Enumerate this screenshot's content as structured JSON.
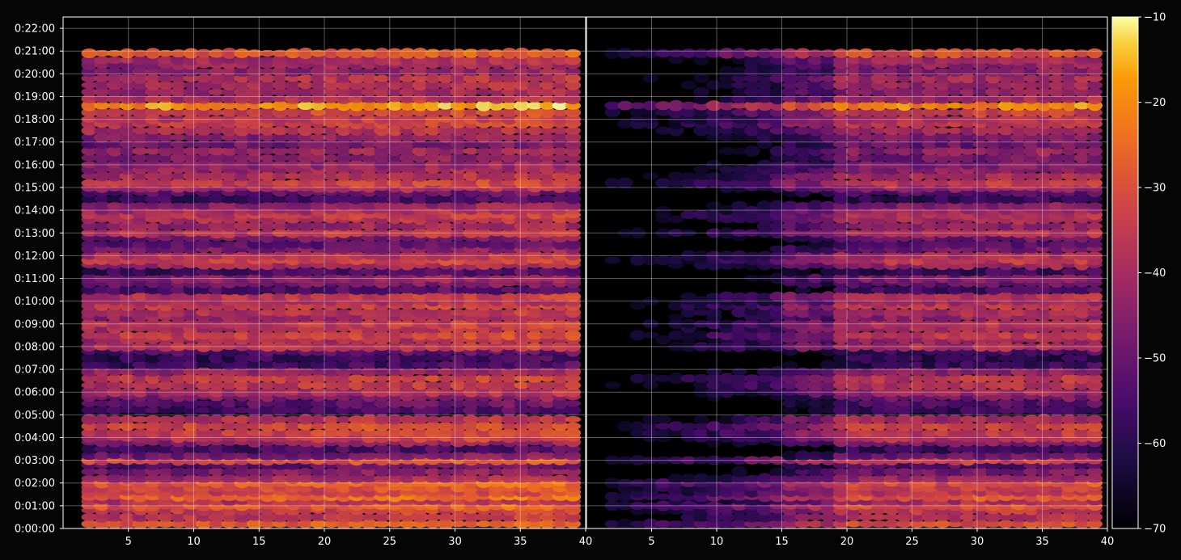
{
  "chart_data": {
    "type": "heatmap",
    "title": "",
    "xlabel": "",
    "ylabel": "",
    "colormap": "inferno",
    "background": "#050505",
    "grid": true,
    "ylim_minutes": [
      0,
      1350
    ],
    "y_ticks": [
      "0:00:00",
      "0:01:00",
      "0:02:00",
      "0:03:00",
      "0:04:00",
      "0:05:00",
      "0:06:00",
      "0:07:00",
      "0:08:00",
      "0:09:00",
      "0:10:00",
      "0:11:00",
      "0:12:00",
      "0:13:00",
      "0:14:00",
      "0:15:00",
      "0:16:00",
      "0:17:00",
      "0:18:00",
      "0:19:00",
      "0:20:00",
      "0:21:00",
      "0:22:00"
    ],
    "panels": [
      {
        "name": "left",
        "xlim": [
          0,
          40
        ],
        "x_ticks": [
          "5",
          "10",
          "15",
          "20",
          "25",
          "30",
          "35",
          "40"
        ],
        "x_range": [
          2,
          40
        ]
      },
      {
        "name": "right",
        "xlim": [
          0,
          40
        ],
        "x_ticks": [
          "5",
          "10",
          "15",
          "20",
          "25",
          "30",
          "35",
          "40"
        ],
        "x_range": [
          2,
          40
        ]
      }
    ],
    "colorbar": {
      "min": -70,
      "max": -10,
      "ticks": [
        "−10",
        "−20",
        "−30",
        "−40",
        "−50",
        "−60",
        "−70"
      ]
    },
    "row_levels_left": [
      {
        "t": 0.2,
        "v": -30
      },
      {
        "t": 0.5,
        "v": -38
      },
      {
        "t": 0.8,
        "v": -36
      },
      {
        "t": 1.0,
        "v": -30
      },
      {
        "t": 1.2,
        "v": -40
      },
      {
        "t": 1.4,
        "v": -28
      },
      {
        "t": 1.6,
        "v": -36
      },
      {
        "t": 1.8,
        "v": -34
      },
      {
        "t": 2.0,
        "v": -30
      },
      {
        "t": 2.2,
        "v": -42
      },
      {
        "t": 2.5,
        "v": -48
      },
      {
        "t": 2.8,
        "v": -54
      },
      {
        "t": 3.0,
        "v": -32
      },
      {
        "t": 3.2,
        "v": -50
      },
      {
        "t": 3.5,
        "v": -58
      },
      {
        "t": 3.8,
        "v": -46
      },
      {
        "t": 4.0,
        "v": -38
      },
      {
        "t": 4.2,
        "v": -36
      },
      {
        "t": 4.5,
        "v": -34
      },
      {
        "t": 4.8,
        "v": -40
      },
      {
        "t": 5.2,
        "v": -58
      },
      {
        "t": 5.5,
        "v": -54
      },
      {
        "t": 5.8,
        "v": -48
      },
      {
        "t": 6.0,
        "v": -42
      },
      {
        "t": 6.3,
        "v": -38
      },
      {
        "t": 6.6,
        "v": -36
      },
      {
        "t": 6.9,
        "v": -44
      },
      {
        "t": 7.2,
        "v": -58
      },
      {
        "t": 7.5,
        "v": -60
      },
      {
        "t": 7.8,
        "v": -56
      },
      {
        "t": 8.0,
        "v": -38
      },
      {
        "t": 8.3,
        "v": -42
      },
      {
        "t": 8.5,
        "v": -36
      },
      {
        "t": 8.8,
        "v": -40
      },
      {
        "t": 9.0,
        "v": -38
      },
      {
        "t": 9.3,
        "v": -44
      },
      {
        "t": 9.5,
        "v": -40
      },
      {
        "t": 9.8,
        "v": -36
      },
      {
        "t": 10.0,
        "v": -42
      },
      {
        "t": 10.2,
        "v": -38
      },
      {
        "t": 10.5,
        "v": -56
      },
      {
        "t": 10.8,
        "v": -50
      },
      {
        "t": 11.0,
        "v": -46
      },
      {
        "t": 11.3,
        "v": -58
      },
      {
        "t": 11.6,
        "v": -42
      },
      {
        "t": 11.8,
        "v": -36
      },
      {
        "t": 12.0,
        "v": -40
      },
      {
        "t": 12.3,
        "v": -48
      },
      {
        "t": 12.5,
        "v": -54
      },
      {
        "t": 12.8,
        "v": -50
      },
      {
        "t": 13.0,
        "v": -38
      },
      {
        "t": 13.3,
        "v": -44
      },
      {
        "t": 13.6,
        "v": -40
      },
      {
        "t": 13.8,
        "v": -38
      },
      {
        "t": 14.0,
        "v": -42
      },
      {
        "t": 14.2,
        "v": -46
      },
      {
        "t": 14.5,
        "v": -58
      },
      {
        "t": 14.8,
        "v": -54
      },
      {
        "t": 15.0,
        "v": -42
      },
      {
        "t": 15.2,
        "v": -36
      },
      {
        "t": 15.5,
        "v": -40
      },
      {
        "t": 15.8,
        "v": -44
      },
      {
        "t": 16.0,
        "v": -46
      },
      {
        "t": 16.3,
        "v": -48
      },
      {
        "t": 16.6,
        "v": -44
      },
      {
        "t": 16.9,
        "v": -50
      },
      {
        "t": 17.2,
        "v": -46
      },
      {
        "t": 17.5,
        "v": -40
      },
      {
        "t": 17.8,
        "v": -36
      },
      {
        "t": 18.0,
        "v": -38
      },
      {
        "t": 18.3,
        "v": -34
      },
      {
        "t": 18.6,
        "v": -20
      },
      {
        "t": 18.9,
        "v": -40
      },
      {
        "t": 19.2,
        "v": -44
      },
      {
        "t": 19.5,
        "v": -42
      },
      {
        "t": 19.8,
        "v": -40
      },
      {
        "t": 20.1,
        "v": -46
      },
      {
        "t": 20.4,
        "v": -44
      },
      {
        "t": 20.6,
        "v": -42
      },
      {
        "t": 20.9,
        "v": -30
      }
    ]
  }
}
